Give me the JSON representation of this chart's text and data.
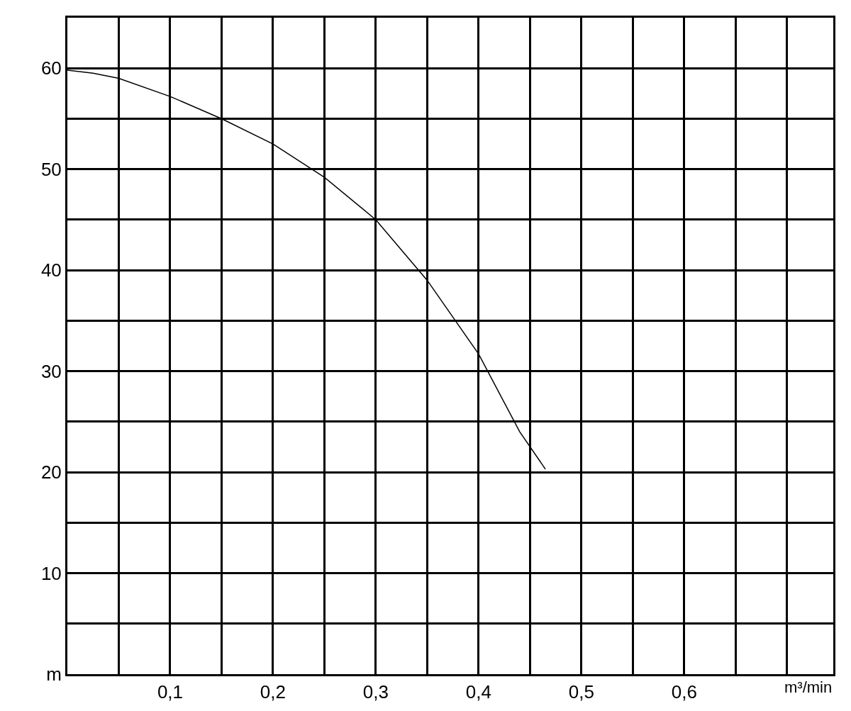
{
  "chart_data": {
    "type": "line",
    "xlabel": "m³/min",
    "x": [
      0,
      0.025,
      0.05,
      0.1,
      0.15,
      0.2,
      0.25,
      0.3,
      0.35,
      0.4,
      0.44,
      0.465
    ],
    "series": [
      {
        "color": "#000000",
        "values": [
          59.8,
          59.5,
          59,
          57.2,
          55,
          52.5,
          49.2,
          45,
          39,
          31.7,
          24,
          20.3
        ]
      }
    ],
    "xlim": [
      0,
      0.745
    ],
    "ylim": [
      0,
      65
    ],
    "xticks": [
      {
        "value": 0.05,
        "label": null
      },
      {
        "value": 0.1,
        "label": "0,1"
      },
      {
        "value": 0.15,
        "label": null
      },
      {
        "value": 0.2,
        "label": "0,2"
      },
      {
        "value": 0.25,
        "label": null
      },
      {
        "value": 0.3,
        "label": "0,3"
      },
      {
        "value": 0.35,
        "label": null
      },
      {
        "value": 0.4,
        "label": "0,4"
      },
      {
        "value": 0.45,
        "label": null
      },
      {
        "value": 0.5,
        "label": "0,5"
      },
      {
        "value": 0.55,
        "label": null
      },
      {
        "value": 0.6,
        "label": "0,6"
      },
      {
        "value": 0.65,
        "label": null
      },
      {
        "value": 0.7,
        "label": null
      }
    ],
    "yticks": [
      {
        "value": 0,
        "label": "m"
      },
      {
        "value": 5,
        "label": null
      },
      10,
      {
        "value": 15,
        "label": null
      },
      20,
      {
        "value": 25,
        "label": null
      },
      30,
      {
        "value": 35,
        "label": null
      },
      40,
      {
        "value": 45,
        "label": null
      },
      50,
      {
        "value": 55,
        "label": null
      },
      60
    ],
    "grid": true,
    "legend": false,
    "marker": "none",
    "line_style": "solid"
  }
}
